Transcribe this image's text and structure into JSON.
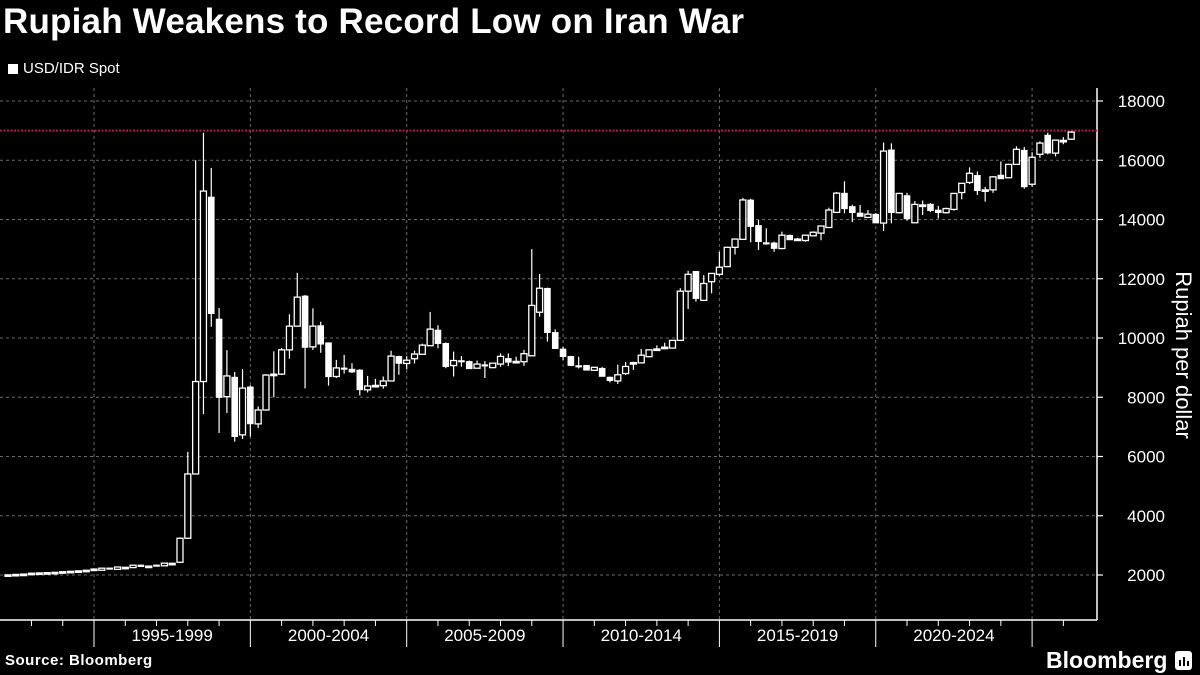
{
  "header": {
    "title": "Rupiah Weakens to Record Low on Iran War",
    "legend": "USD/IDR Spot"
  },
  "footer": {
    "source": "Source: Bloomberg",
    "logo": "Bloomberg"
  },
  "colors": {
    "background": "#000000",
    "candles": "#ffffff",
    "reference_line": "#b0203c",
    "grid": "#6a6a6a"
  },
  "chart_data": {
    "type": "candlestick",
    "title": "Rupiah Weakens to Record Low on Iran War",
    "series_name": "USD/IDR Spot",
    "ylabel": "Rupiah per dollar",
    "ylim": [
      800,
      18600
    ],
    "yticks": [
      "2000",
      "4000",
      "6000",
      "8000",
      "10000",
      "12000",
      "14000",
      "16000",
      "18000"
    ],
    "xlabels": [
      "1995-1999",
      "2000-2004",
      "2005-2009",
      "2010-2014",
      "2015-2019",
      "2020-2024"
    ],
    "reference_line": 17000,
    "grid": true,
    "candles": [
      {
        "period": "1992Q1",
        "open": 1995,
        "high": 2010,
        "low": 1990,
        "close": 2005
      },
      {
        "period": "1992Q2",
        "open": 2010,
        "high": 2025,
        "low": 2005,
        "close": 2020
      },
      {
        "period": "1992Q3",
        "open": 2020,
        "high": 2035,
        "low": 2015,
        "close": 2030
      },
      {
        "period": "1992Q4",
        "open": 2030,
        "high": 2065,
        "low": 2025,
        "close": 2060
      },
      {
        "period": "1993Q1",
        "open": 2060,
        "high": 2075,
        "low": 2055,
        "close": 2070
      },
      {
        "period": "1993Q2",
        "open": 2070,
        "high": 2085,
        "low": 2065,
        "close": 2080
      },
      {
        "period": "1993Q3",
        "open": 2080,
        "high": 2095,
        "low": 2075,
        "close": 2090
      },
      {
        "period": "1993Q4",
        "open": 2090,
        "high": 2115,
        "low": 2085,
        "close": 2110
      },
      {
        "period": "1994Q1",
        "open": 2110,
        "high": 2130,
        "low": 2105,
        "close": 2125
      },
      {
        "period": "1994Q2",
        "open": 2125,
        "high": 2145,
        "low": 2120,
        "close": 2140
      },
      {
        "period": "1994Q3",
        "open": 2140,
        "high": 2165,
        "low": 2135,
        "close": 2160
      },
      {
        "period": "1994Q4",
        "open": 2160,
        "high": 2205,
        "low": 2155,
        "close": 2200
      },
      {
        "period": "1995Q1",
        "open": 2160,
        "high": 2240,
        "low": 2150,
        "close": 2230
      },
      {
        "period": "1995Q2",
        "open": 2240,
        "high": 2250,
        "low": 2190,
        "close": 2200
      },
      {
        "period": "1995Q3",
        "open": 2190,
        "high": 2275,
        "low": 2185,
        "close": 2270
      },
      {
        "period": "1995Q4",
        "open": 2260,
        "high": 2270,
        "low": 2250,
        "close": 2260
      },
      {
        "period": "1996Q1",
        "open": 2250,
        "high": 2335,
        "low": 2245,
        "close": 2330
      },
      {
        "period": "1996Q2",
        "open": 2340,
        "high": 2345,
        "low": 2280,
        "close": 2280
      },
      {
        "period": "1996Q3",
        "open": 2300,
        "high": 2320,
        "low": 2290,
        "close": 2300
      },
      {
        "period": "1996Q4",
        "open": 2340,
        "high": 2350,
        "low": 2300,
        "close": 2300
      },
      {
        "period": "1997Q1",
        "open": 2310,
        "high": 2405,
        "low": 2305,
        "close": 2400
      },
      {
        "period": "1997Q2",
        "open": 2390,
        "high": 2420,
        "low": 2385,
        "close": 2395
      },
      {
        "period": "1997Q3",
        "open": 2430,
        "high": 3270,
        "low": 2400,
        "close": 3240
      },
      {
        "period": "1997Q4",
        "open": 3240,
        "high": 6160,
        "low": 3230,
        "close": 5410
      },
      {
        "period": "1998Q1",
        "open": 5410,
        "high": 16000,
        "low": 5400,
        "close": 8530
      },
      {
        "period": "1998Q2",
        "open": 8530,
        "high": 16930,
        "low": 7430,
        "close": 14960
      },
      {
        "period": "1998Q3",
        "open": 14760,
        "high": 15740,
        "low": 10380,
        "close": 10820
      },
      {
        "period": "1998Q4",
        "open": 10640,
        "high": 11010,
        "low": 6790,
        "close": 7990
      },
      {
        "period": "1999Q1",
        "open": 8020,
        "high": 9590,
        "low": 7470,
        "close": 8720
      },
      {
        "period": "1999Q2",
        "open": 8680,
        "high": 8850,
        "low": 6500,
        "close": 6670
      },
      {
        "period": "1999Q3",
        "open": 6730,
        "high": 8950,
        "low": 6590,
        "close": 8310
      },
      {
        "period": "1999Q4",
        "open": 8350,
        "high": 8400,
        "low": 6670,
        "close": 7100
      },
      {
        "period": "2000Q1",
        "open": 7100,
        "high": 7690,
        "low": 6960,
        "close": 7570
      },
      {
        "period": "2000Q2",
        "open": 7570,
        "high": 8780,
        "low": 7550,
        "close": 8750
      },
      {
        "period": "2000Q3",
        "open": 8750,
        "high": 9550,
        "low": 8000,
        "close": 8780
      },
      {
        "period": "2000Q4",
        "open": 8780,
        "high": 9660,
        "low": 8750,
        "close": 9600
      },
      {
        "period": "2001Q1",
        "open": 9600,
        "high": 10800,
        "low": 9300,
        "close": 10400
      },
      {
        "period": "2001Q2",
        "open": 10400,
        "high": 12200,
        "low": 10400,
        "close": 11380
      },
      {
        "period": "2001Q3",
        "open": 11420,
        "high": 11450,
        "low": 8300,
        "close": 9680
      },
      {
        "period": "2001Q4",
        "open": 9700,
        "high": 11000,
        "low": 9600,
        "close": 10400
      },
      {
        "period": "2002Q1",
        "open": 10420,
        "high": 10550,
        "low": 9500,
        "close": 9790
      },
      {
        "period": "2002Q2",
        "open": 9840,
        "high": 9850,
        "low": 8390,
        "close": 8690
      },
      {
        "period": "2002Q3",
        "open": 8700,
        "high": 9260,
        "low": 8650,
        "close": 8990
      },
      {
        "period": "2002Q4",
        "open": 8990,
        "high": 9430,
        "low": 8800,
        "close": 8960
      },
      {
        "period": "2003Q1",
        "open": 8950,
        "high": 9150,
        "low": 8820,
        "close": 8850
      },
      {
        "period": "2003Q2",
        "open": 8920,
        "high": 8950,
        "low": 8060,
        "close": 8250
      },
      {
        "period": "2003Q3",
        "open": 8250,
        "high": 8720,
        "low": 8160,
        "close": 8380
      },
      {
        "period": "2003Q4",
        "open": 8380,
        "high": 8620,
        "low": 8350,
        "close": 8400
      },
      {
        "period": "2004Q1",
        "open": 8390,
        "high": 8700,
        "low": 8290,
        "close": 8550
      },
      {
        "period": "2004Q2",
        "open": 8550,
        "high": 9570,
        "low": 8550,
        "close": 9390
      },
      {
        "period": "2004Q3",
        "open": 9380,
        "high": 9400,
        "low": 8760,
        "close": 9140
      },
      {
        "period": "2004Q4",
        "open": 9140,
        "high": 9390,
        "low": 8940,
        "close": 9250
      },
      {
        "period": "2005Q1",
        "open": 9300,
        "high": 9570,
        "low": 9140,
        "close": 9460
      },
      {
        "period": "2005Q2",
        "open": 9450,
        "high": 9810,
        "low": 9450,
        "close": 9760
      },
      {
        "period": "2005Q3",
        "open": 9740,
        "high": 10880,
        "low": 9740,
        "close": 10300
      },
      {
        "period": "2005Q4",
        "open": 10270,
        "high": 10430,
        "low": 9650,
        "close": 9810
      },
      {
        "period": "2006Q1",
        "open": 9820,
        "high": 9850,
        "low": 8980,
        "close": 9030
      },
      {
        "period": "2006Q2",
        "open": 9070,
        "high": 9540,
        "low": 8700,
        "close": 9240
      },
      {
        "period": "2006Q3",
        "open": 9240,
        "high": 9390,
        "low": 9030,
        "close": 9230
      },
      {
        "period": "2006Q4",
        "open": 9210,
        "high": 9240,
        "low": 8960,
        "close": 8960
      },
      {
        "period": "2007Q1",
        "open": 8980,
        "high": 9240,
        "low": 8980,
        "close": 9120
      },
      {
        "period": "2007Q2",
        "open": 9100,
        "high": 9220,
        "low": 8650,
        "close": 9080
      },
      {
        "period": "2007Q3",
        "open": 9000,
        "high": 9150,
        "low": 8980,
        "close": 9150
      },
      {
        "period": "2007Q4",
        "open": 9120,
        "high": 9480,
        "low": 9030,
        "close": 9380
      },
      {
        "period": "2008Q1",
        "open": 9310,
        "high": 9480,
        "low": 9050,
        "close": 9180
      },
      {
        "period": "2008Q2",
        "open": 9200,
        "high": 9370,
        "low": 9170,
        "close": 9210
      },
      {
        "period": "2008Q3",
        "open": 9200,
        "high": 9600,
        "low": 9060,
        "close": 9470
      },
      {
        "period": "2008Q4",
        "open": 9400,
        "high": 13000,
        "low": 9400,
        "close": 11100
      },
      {
        "period": "2009Q1",
        "open": 10870,
        "high": 12160,
        "low": 10720,
        "close": 11680
      },
      {
        "period": "2009Q2",
        "open": 11680,
        "high": 11700,
        "low": 9880,
        "close": 10180
      },
      {
        "period": "2009Q3",
        "open": 10190,
        "high": 10290,
        "low": 9640,
        "close": 9640
      },
      {
        "period": "2009Q4",
        "open": 9630,
        "high": 9700,
        "low": 9260,
        "close": 9370
      },
      {
        "period": "2010Q1",
        "open": 9380,
        "high": 9400,
        "low": 9050,
        "close": 9070
      },
      {
        "period": "2010Q2",
        "open": 9070,
        "high": 9370,
        "low": 8970,
        "close": 9060
      },
      {
        "period": "2010Q3",
        "open": 9080,
        "high": 9090,
        "low": 8910,
        "close": 8910
      },
      {
        "period": "2010Q4",
        "open": 8910,
        "high": 9030,
        "low": 8900,
        "close": 9010
      },
      {
        "period": "2011Q1",
        "open": 8980,
        "high": 9020,
        "low": 8700,
        "close": 8700
      },
      {
        "period": "2011Q2",
        "open": 8680,
        "high": 8700,
        "low": 8500,
        "close": 8560
      },
      {
        "period": "2011Q3",
        "open": 8550,
        "high": 9100,
        "low": 8450,
        "close": 8760
      },
      {
        "period": "2011Q4",
        "open": 8800,
        "high": 9190,
        "low": 8750,
        "close": 9040
      },
      {
        "period": "2012Q1",
        "open": 9150,
        "high": 9200,
        "low": 8920,
        "close": 9170
      },
      {
        "period": "2012Q2",
        "open": 9160,
        "high": 9630,
        "low": 9150,
        "close": 9420
      },
      {
        "period": "2012Q3",
        "open": 9370,
        "high": 9600,
        "low": 9350,
        "close": 9600
      },
      {
        "period": "2012Q4",
        "open": 9610,
        "high": 9750,
        "low": 9580,
        "close": 9630
      },
      {
        "period": "2013Q1",
        "open": 9670,
        "high": 9840,
        "low": 9620,
        "close": 9690
      },
      {
        "period": "2013Q2",
        "open": 9660,
        "high": 9930,
        "low": 9650,
        "close": 9920
      },
      {
        "period": "2013Q3",
        "open": 9920,
        "high": 11680,
        "low": 9900,
        "close": 11580
      },
      {
        "period": "2013Q4",
        "open": 11580,
        "high": 12270,
        "low": 10980,
        "close": 12150
      },
      {
        "period": "2014Q1",
        "open": 12250,
        "high": 12250,
        "low": 11230,
        "close": 11330
      },
      {
        "period": "2014Q2",
        "open": 11270,
        "high": 12120,
        "low": 11270,
        "close": 11840
      },
      {
        "period": "2014Q3",
        "open": 11900,
        "high": 12180,
        "low": 11510,
        "close": 12180
      },
      {
        "period": "2014Q4",
        "open": 12150,
        "high": 12910,
        "low": 12100,
        "close": 12390
      },
      {
        "period": "2015Q1",
        "open": 12410,
        "high": 13080,
        "low": 12400,
        "close": 13060
      },
      {
        "period": "2015Q2",
        "open": 13060,
        "high": 13340,
        "low": 12820,
        "close": 13340
      },
      {
        "period": "2015Q3",
        "open": 13330,
        "high": 14730,
        "low": 13330,
        "close": 14660
      },
      {
        "period": "2015Q4",
        "open": 14660,
        "high": 14700,
        "low": 13230,
        "close": 13760
      },
      {
        "period": "2016Q1",
        "open": 13800,
        "high": 13980,
        "low": 12970,
        "close": 13250
      },
      {
        "period": "2016Q2",
        "open": 13220,
        "high": 13700,
        "low": 13150,
        "close": 13210
      },
      {
        "period": "2016Q3",
        "open": 13210,
        "high": 13250,
        "low": 12910,
        "close": 13020
      },
      {
        "period": "2016Q4",
        "open": 13020,
        "high": 13590,
        "low": 13000,
        "close": 13470
      },
      {
        "period": "2017Q1",
        "open": 13470,
        "high": 13490,
        "low": 13310,
        "close": 13310
      },
      {
        "period": "2017Q2",
        "open": 13330,
        "high": 13380,
        "low": 13280,
        "close": 13340
      },
      {
        "period": "2017Q3",
        "open": 13290,
        "high": 13480,
        "low": 13250,
        "close": 13470
      },
      {
        "period": "2017Q4",
        "open": 13450,
        "high": 13600,
        "low": 13450,
        "close": 13570
      },
      {
        "period": "2018Q1",
        "open": 13540,
        "high": 13780,
        "low": 13300,
        "close": 13780
      },
      {
        "period": "2018Q2",
        "open": 13730,
        "high": 14400,
        "low": 13730,
        "close": 14320
      },
      {
        "period": "2018Q3",
        "open": 14240,
        "high": 14930,
        "low": 14240,
        "close": 14890
      },
      {
        "period": "2018Q4",
        "open": 14890,
        "high": 15290,
        "low": 14210,
        "close": 14360
      },
      {
        "period": "2019Q1",
        "open": 14440,
        "high": 14500,
        "low": 13910,
        "close": 14230
      },
      {
        "period": "2019Q2",
        "open": 14220,
        "high": 14490,
        "low": 14100,
        "close": 14100
      },
      {
        "period": "2019Q3",
        "open": 14070,
        "high": 14320,
        "low": 14050,
        "close": 14180
      },
      {
        "period": "2019Q4",
        "open": 14180,
        "high": 14220,
        "low": 13880,
        "close": 13880
      },
      {
        "period": "2020Q1",
        "open": 13880,
        "high": 16600,
        "low": 13610,
        "close": 16310
      },
      {
        "period": "2020Q2",
        "open": 16350,
        "high": 16570,
        "low": 13870,
        "close": 14230
      },
      {
        "period": "2020Q3",
        "open": 14230,
        "high": 14900,
        "low": 14200,
        "close": 14880
      },
      {
        "period": "2020Q4",
        "open": 14810,
        "high": 14900,
        "low": 13960,
        "close": 14020
      },
      {
        "period": "2021Q1",
        "open": 13890,
        "high": 14620,
        "low": 13890,
        "close": 14510
      },
      {
        "period": "2021Q2",
        "open": 14490,
        "high": 14640,
        "low": 14150,
        "close": 14490
      },
      {
        "period": "2021Q3",
        "open": 14520,
        "high": 14550,
        "low": 14250,
        "close": 14300
      },
      {
        "period": "2021Q4",
        "open": 14320,
        "high": 14460,
        "low": 14030,
        "close": 14230
      },
      {
        "period": "2022Q1",
        "open": 14230,
        "high": 14400,
        "low": 14200,
        "close": 14370
      },
      {
        "period": "2022Q2",
        "open": 14340,
        "high": 14880,
        "low": 14300,
        "close": 14880
      },
      {
        "period": "2022Q3",
        "open": 14910,
        "high": 15230,
        "low": 14680,
        "close": 15220
      },
      {
        "period": "2022Q4",
        "open": 15250,
        "high": 15760,
        "low": 15200,
        "close": 15560
      },
      {
        "period": "2023Q1",
        "open": 15490,
        "high": 15620,
        "low": 14830,
        "close": 14970
      },
      {
        "period": "2023Q2",
        "open": 15000,
        "high": 15100,
        "low": 14600,
        "close": 15000
      },
      {
        "period": "2023Q3",
        "open": 15000,
        "high": 15460,
        "low": 14900,
        "close": 15440
      },
      {
        "period": "2023Q4",
        "open": 15500,
        "high": 15960,
        "low": 15370,
        "close": 15370
      },
      {
        "period": "2024Q1",
        "open": 15410,
        "high": 15870,
        "low": 15400,
        "close": 15860
      },
      {
        "period": "2024Q2",
        "open": 15860,
        "high": 16470,
        "low": 15860,
        "close": 16370
      },
      {
        "period": "2024Q3",
        "open": 16340,
        "high": 16450,
        "low": 15040,
        "close": 15100
      },
      {
        "period": "2024Q4",
        "open": 15190,
        "high": 16270,
        "low": 15100,
        "close": 16100
      },
      {
        "period": "2025Q1",
        "open": 16200,
        "high": 16640,
        "low": 16080,
        "close": 16580
      },
      {
        "period": "2025Q2",
        "open": 16850,
        "high": 16930,
        "low": 16200,
        "close": 16240
      },
      {
        "period": "2025Q3",
        "open": 16240,
        "high": 16700,
        "low": 16130,
        "close": 16680
      },
      {
        "period": "2025Q4",
        "open": 16670,
        "high": 16780,
        "low": 16540,
        "close": 16670
      },
      {
        "period": "2026Q1",
        "open": 16710,
        "high": 16980,
        "low": 16690,
        "close": 16950
      }
    ]
  }
}
